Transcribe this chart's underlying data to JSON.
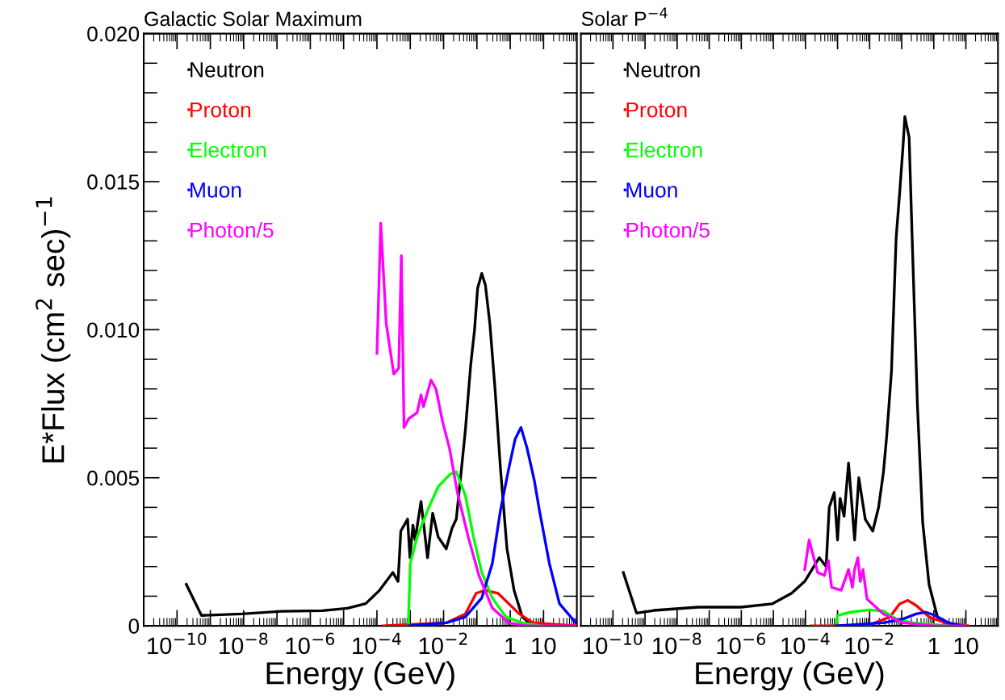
{
  "chart_data": [
    {
      "type": "line",
      "title": "Galactic Solar Maximum",
      "xlabel": "Energy (GeV)",
      "ylabel": "E*Flux (cm$^{2}$ sec)$^{−1}$",
      "log": "x",
      "legend": "top left",
      "grid": false,
      "xlim": [
        1e-11,
        100
      ],
      "ylim": [
        0,
        0.02
      ],
      "xticks": [
        {
          "value": 1e-10,
          "label": "10$^{−10}$"
        },
        {
          "value": 1e-09,
          "label": null
        },
        {
          "value": 1e-08,
          "label": "10$^{−8}$"
        },
        {
          "value": 1e-07,
          "label": null
        },
        {
          "value": 1e-06,
          "label": "10$^{−6}$"
        },
        {
          "value": 1e-05,
          "label": null
        },
        {
          "value": 0.0001,
          "label": "10$^{−4}$"
        },
        {
          "value": 0.001,
          "label": null
        },
        {
          "value": 0.01,
          "label": "10$^{−2}$"
        },
        {
          "value": 0.1,
          "label": null
        },
        {
          "value": 1,
          "label": "1"
        },
        {
          "value": 10,
          "label": "10"
        }
      ],
      "yticks": [
        0,
        {
          "value": 0.005,
          "label": "0.005"
        },
        {
          "value": 0.01,
          "label": "0.010"
        },
        {
          "value": 0.015,
          "label": "0.015"
        },
        {
          "value": 0.02,
          "label": "0.020"
        }
      ],
      "series": [
        {
          "name": "Neutron",
          "color": "#000000",
          "x": [
            1.9e-10,
            5.4e-10,
            8.7e-09,
            1.4e-07,
            2.3e-06,
            1.3e-05,
            4.6e-05,
            0.00012,
            0.0003,
            0.00043,
            0.00052,
            0.00083,
            0.00098,
            0.0012,
            0.0014,
            0.0021,
            0.0033,
            0.0047,
            0.0069,
            0.012,
            0.018,
            0.024,
            0.031,
            0.045,
            0.065,
            0.085,
            0.105,
            0.14,
            0.18,
            0.245,
            0.35,
            0.51,
            0.8,
            1.3,
            2.3,
            4.8
          ],
          "values": [
            0.0014,
            0.00035,
            0.0004,
            0.00049,
            0.00051,
            0.00059,
            0.00075,
            0.0012,
            0.0018,
            0.0015,
            0.0032,
            0.0036,
            0.0023,
            0.0034,
            0.0029,
            0.0042,
            0.0023,
            0.0038,
            0.003,
            0.0026,
            0.0033,
            0.0036,
            0.0048,
            0.0066,
            0.0088,
            0.01,
            0.0114,
            0.0119,
            0.0115,
            0.0102,
            0.008,
            0.0053,
            0.0026,
            0.0012,
            0.0003,
            0
          ]
        },
        {
          "name": "Proton",
          "color": "#ff0000",
          "x": [
            0.00015,
            0.012,
            0.045,
            0.095,
            0.18,
            0.43,
            0.9,
            1.9,
            4.8,
            93
          ],
          "values": [
            0,
            0.0001,
            0.0004,
            0.0011,
            0.0012,
            0.0011,
            0.00075,
            0.0004,
            0.0001,
            0
          ]
        },
        {
          "name": "Electron",
          "color": "#00ff00",
          "x": [
            0.00087,
            0.001,
            0.0016,
            0.0033,
            0.0069,
            0.015,
            0.024,
            0.045,
            0.079,
            0.14,
            0.29,
            0.74,
            2.3,
            8.4
          ],
          "values": [
            0,
            0.0021,
            0.003,
            0.0039,
            0.0047,
            0.0051,
            0.0052,
            0.0044,
            0.003,
            0.0018,
            0.00094,
            0.0003,
            0.0001,
            0
          ]
        },
        {
          "name": "Muon",
          "color": "#0000ff",
          "x": [
            0.0009,
            0.012,
            0.045,
            0.14,
            0.29,
            0.51,
            0.9,
            1.4,
            2.1,
            3.2,
            5.3,
            7.5,
            15,
            30,
            93
          ],
          "values": [
            0,
            0.0001,
            0.0003,
            0.00094,
            0.0021,
            0.0039,
            0.0053,
            0.0063,
            0.0067,
            0.006,
            0.0049,
            0.0039,
            0.0021,
            0.00075,
            0.0001
          ]
        },
        {
          "name": "Photon/5",
          "color": "#ff00ff",
          "x": [
            0.0001,
            0.00013,
            0.00019,
            0.00032,
            0.00045,
            0.00054,
            0.00065,
            0.00091,
            0.0016,
            0.0021,
            0.0025,
            0.0042,
            0.0059,
            0.0093,
            0.015,
            0.026,
            0.055,
            0.115,
            0.29,
            0.9,
            3.2,
            93
          ],
          "values": [
            0.0092,
            0.0136,
            0.0102,
            0.0085,
            0.0087,
            0.0125,
            0.0067,
            0.007,
            0.0072,
            0.0078,
            0.0074,
            0.0083,
            0.008,
            0.0069,
            0.006,
            0.0045,
            0.003,
            0.0017,
            0.0006,
            0.0001,
            0,
            0
          ]
        }
      ]
    },
    {
      "type": "line",
      "title": "Solar P$^{−4}$",
      "xlabel": "Energy (GeV)",
      "log": "x",
      "legend": "top left",
      "grid": false,
      "tick_labels": "x",
      "xlim": [
        1e-11,
        100
      ],
      "ylim": [
        0,
        0.02
      ],
      "xticks": [
        {
          "value": 1e-10,
          "label": "10$^{−10}$"
        },
        {
          "value": 1e-09,
          "label": null
        },
        {
          "value": 1e-08,
          "label": "10$^{−8}$"
        },
        {
          "value": 1e-07,
          "label": null
        },
        {
          "value": 1e-06,
          "label": "10$^{−6}$"
        },
        {
          "value": 1e-05,
          "label": null
        },
        {
          "value": 0.0001,
          "label": "10$^{−4}$"
        },
        {
          "value": 0.001,
          "label": null
        },
        {
          "value": 0.01,
          "label": "10$^{−2}$"
        },
        {
          "value": 0.1,
          "label": null
        },
        {
          "value": 1,
          "label": "1"
        },
        {
          "value": 10,
          "label": "10"
        }
      ],
      "yticks": [
        0,
        0.005,
        0.01,
        0.015,
        0.02
      ],
      "series": [
        {
          "name": "Neutron",
          "color": "#000000",
          "x": [
            2.1e-10,
            5.4e-10,
            1.9e-09,
            4.6e-08,
            9.8e-07,
            9.1e-06,
            3.7e-05,
            9.5e-05,
            0.00027,
            0.00044,
            0.00055,
            0.00079,
            0.001,
            0.0012,
            0.0016,
            0.0022,
            0.0034,
            0.0046,
            0.0073,
            0.0125,
            0.019,
            0.027,
            0.034,
            0.048,
            0.067,
            0.086,
            0.11,
            0.125,
            0.17,
            0.22,
            0.31,
            0.45,
            0.71,
            1.3,
            2.9
          ],
          "values": [
            0.0018,
            0.00043,
            0.00052,
            0.00063,
            0.00063,
            0.00074,
            0.0011,
            0.0015,
            0.0023,
            0.002,
            0.004,
            0.0045,
            0.0029,
            0.0043,
            0.0037,
            0.0055,
            0.0029,
            0.005,
            0.0036,
            0.0032,
            0.004,
            0.0052,
            0.0064,
            0.0086,
            0.0131,
            0.0146,
            0.0162,
            0.0172,
            0.0165,
            0.0125,
            0.0074,
            0.0035,
            0.0014,
            0.0003,
            0
          ]
        },
        {
          "name": "Proton",
          "color": "#ff0000",
          "x": [
            0.00015,
            0.0083,
            0.043,
            0.086,
            0.155,
            0.28,
            0.71,
            2.3,
            12
          ],
          "values": [
            0,
            0,
            0.0003,
            0.00074,
            0.00086,
            0.00069,
            0.0003,
            0.0001,
            0
          ]
        },
        {
          "name": "Electron",
          "color": "#00ff00",
          "x": [
            0.00089,
            0.001,
            0.0025,
            0.01,
            0.027,
            0.068,
            0.22,
            2.9
          ],
          "values": [
            0,
            0.00035,
            0.00046,
            0.00054,
            0.0005,
            0.00023,
            0.0001,
            0
          ]
        },
        {
          "name": "Muon",
          "color": "#0000ff",
          "x": [
            0.00089,
            0.027,
            0.11,
            0.28,
            0.56,
            1.1,
            2.9,
            7.4
          ],
          "values": [
            0,
            0.0001,
            0.00023,
            0.0004,
            0.00046,
            0.00035,
            0.0001,
            0
          ]
        },
        {
          "name": "Photon/5",
          "color": "#ff00ff",
          "x": [
            9.5e-05,
            0.00013,
            0.00024,
            0.00039,
            0.00052,
            0.00065,
            0.0013,
            0.0022,
            0.0029,
            0.0034,
            0.0043,
            0.0051,
            0.0062,
            0.0083,
            0.027,
            0.11,
            1,
            9.3
          ],
          "values": [
            0.0019,
            0.0029,
            0.0018,
            0.0017,
            0.0022,
            0.0013,
            0.0012,
            0.0019,
            0.0013,
            0.0019,
            0.0023,
            0.0015,
            0.0019,
            0.0009,
            0.0004,
            0.0001,
            0,
            0
          ]
        }
      ]
    }
  ]
}
